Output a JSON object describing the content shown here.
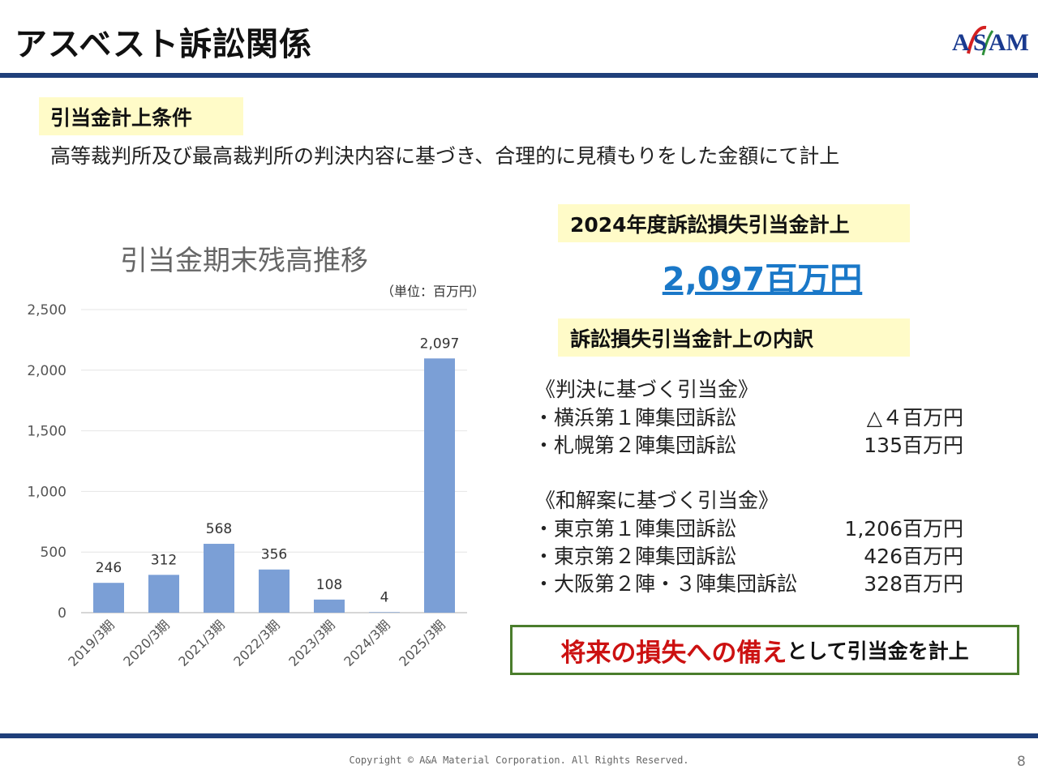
{
  "header": {
    "title": "アスベスト訴訟関係",
    "logo_text": "ASAM"
  },
  "condition": {
    "heading": "引当金計上条件",
    "text": "高等裁判所及び最高裁判所の判決内容に基づき、合理的に見積もりをした金額にて計上"
  },
  "chart_data": {
    "type": "bar",
    "title": "引当金期末残高推移",
    "unit": "（単位：百万円）",
    "categories": [
      "2019/3期",
      "2020/3期",
      "2021/3期",
      "2022/3期",
      "2023/3期",
      "2024/3期",
      "2025/3期"
    ],
    "values": [
      246,
      312,
      568,
      356,
      108,
      4,
      2097
    ],
    "data_labels": [
      "246",
      "312",
      "568",
      "356",
      "108",
      "4",
      "2,097"
    ],
    "ylim": [
      0,
      2500
    ],
    "yticks": [
      0,
      500,
      1000,
      1500,
      2000,
      2500
    ],
    "ytick_labels": [
      "0",
      "500",
      "1,000",
      "1,500",
      "2,000",
      "2,500"
    ],
    "bar_color": "#7b9fd6",
    "grid": true
  },
  "provision": {
    "heading": "2024年度訴訟損失引当金計上",
    "amount": "2,097百万円"
  },
  "breakdown": {
    "heading": "訴訟損失引当金計上の内訳",
    "judgment": {
      "title": "《判決に基づく引当金》",
      "items": [
        {
          "name": "・横浜第１陣集団訴訟",
          "amount": "△４百万円"
        },
        {
          "name": "・札幌第２陣集団訴訟",
          "amount": "135百万円"
        }
      ]
    },
    "settlement": {
      "title": "《和解案に基づく引当金》",
      "items": [
        {
          "name": "・東京第１陣集団訴訟",
          "amount": "1,206百万円"
        },
        {
          "name": "・東京第２陣集団訴訟",
          "amount": "426百万円"
        },
        {
          "name": "・大阪第２陣・３陣集団訴訟",
          "amount": "328百万円"
        }
      ]
    }
  },
  "reserve": {
    "emphasis": "将来の損失への備え",
    "rest": "として引当金を計上"
  },
  "footer": {
    "copyright": "Copyright © A&A Material Corporation. All Rights Reserved.",
    "page": "8"
  }
}
